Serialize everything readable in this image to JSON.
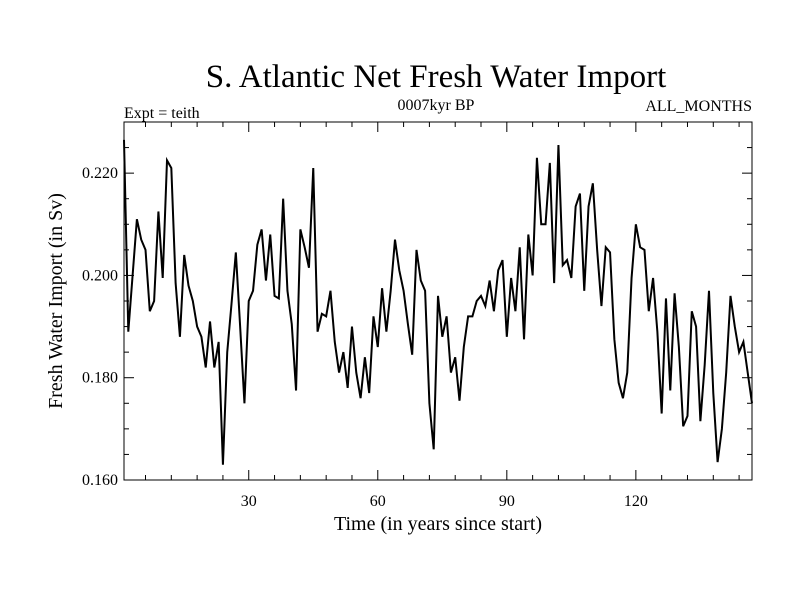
{
  "chart_data": {
    "type": "line",
    "title": "S. Atlantic Net Fresh Water Import",
    "subtitle_left": "Expt = teith",
    "subtitle_center": "0007kyr BP",
    "subtitle_right": "ALL_MONTHS",
    "xlabel": "Time (in years since start)",
    "ylabel": "Fresh Water Import (in Sv)",
    "xlim": [
      1,
      147
    ],
    "ylim": [
      0.16,
      0.23
    ],
    "x_ticks": [
      30,
      60,
      90,
      120
    ],
    "x_tick_labels": [
      "30",
      "60",
      "90",
      "120"
    ],
    "y_ticks": [
      0.16,
      0.18,
      0.2,
      0.22
    ],
    "y_tick_labels": [
      "0.160",
      "0.180",
      "0.200",
      "0.220"
    ],
    "x_minor_step": 6,
    "y_minor_step": 0.005,
    "x_start": 1,
    "x_step": 1,
    "series": [
      {
        "name": "fresh_water_import",
        "color": "#000000",
        "values": [
          0.2265,
          0.189,
          0.2,
          0.211,
          0.207,
          0.205,
          0.193,
          0.195,
          0.2125,
          0.1995,
          0.2225,
          0.221,
          0.1985,
          0.188,
          0.204,
          0.198,
          0.195,
          0.19,
          0.188,
          0.182,
          0.191,
          0.182,
          0.187,
          0.163,
          0.185,
          0.1945,
          0.2045,
          0.19,
          0.175,
          0.195,
          0.197,
          0.206,
          0.209,
          0.199,
          0.208,
          0.196,
          0.1955,
          0.215,
          0.197,
          0.1905,
          0.1775,
          0.209,
          0.2055,
          0.2015,
          0.221,
          0.189,
          0.1925,
          0.192,
          0.197,
          0.187,
          0.181,
          0.185,
          0.178,
          0.19,
          0.181,
          0.176,
          0.184,
          0.177,
          0.192,
          0.186,
          0.1975,
          0.189,
          0.197,
          0.207,
          0.201,
          0.197,
          0.1905,
          0.1845,
          0.205,
          0.199,
          0.197,
          0.175,
          0.166,
          0.196,
          0.188,
          0.192,
          0.181,
          0.184,
          0.1755,
          0.186,
          0.192,
          0.192,
          0.195,
          0.196,
          0.194,
          0.199,
          0.193,
          0.201,
          0.203,
          0.188,
          0.1995,
          0.193,
          0.2055,
          0.1875,
          0.208,
          0.2,
          0.223,
          0.21,
          0.21,
          0.222,
          0.1985,
          0.2255,
          0.202,
          0.203,
          0.1995,
          0.2135,
          0.216,
          0.197,
          0.2135,
          0.218,
          0.205,
          0.194,
          0.2055,
          0.2045,
          0.1875,
          0.179,
          0.176,
          0.181,
          0.1995,
          0.21,
          0.2055,
          0.205,
          0.193,
          0.1995,
          0.189,
          0.173,
          0.1955,
          0.1775,
          0.1965,
          0.186,
          0.1705,
          0.1725,
          0.193,
          0.19,
          0.1715,
          0.1825,
          0.197,
          0.177,
          0.1635,
          0.17,
          0.181,
          0.196,
          0.19,
          0.185,
          0.187,
          0.181,
          0.175
        ]
      }
    ]
  }
}
